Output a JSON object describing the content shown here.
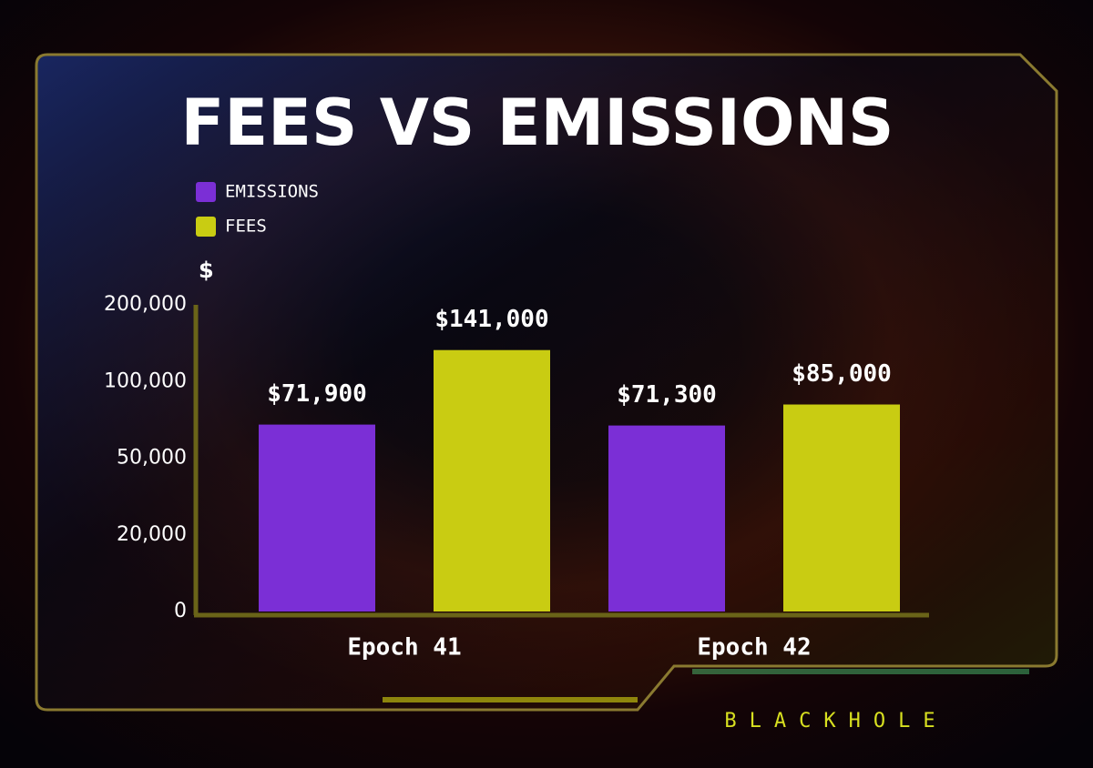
{
  "chart_data": {
    "type": "bar",
    "title": "FEES VS EMISSIONS",
    "y_label": "$",
    "categories": [
      "Epoch 41",
      "Epoch 42"
    ],
    "series": [
      {
        "name": "EMISSIONS",
        "color": "#7b2fd6",
        "values": [
          71900,
          71300
        ],
        "value_labels": [
          "$71,900",
          "$71,300"
        ]
      },
      {
        "name": "FEES",
        "color": "#c9cc12",
        "values": [
          141000,
          85000
        ],
        "value_labels": [
          "$141,000",
          "$85,000"
        ]
      }
    ],
    "ylim": [
      0,
      200000
    ],
    "yticks": [
      0,
      {
        "value": 20000,
        "label": "20,000"
      },
      {
        "value": 50000,
        "label": "50,000"
      },
      {
        "value": 100000,
        "label": "100,000"
      },
      {
        "value": 200000,
        "label": "200,000"
      }
    ],
    "y_scale": "tick-spaced",
    "legend": "top-left"
  },
  "brand": "BLACKHOLE"
}
